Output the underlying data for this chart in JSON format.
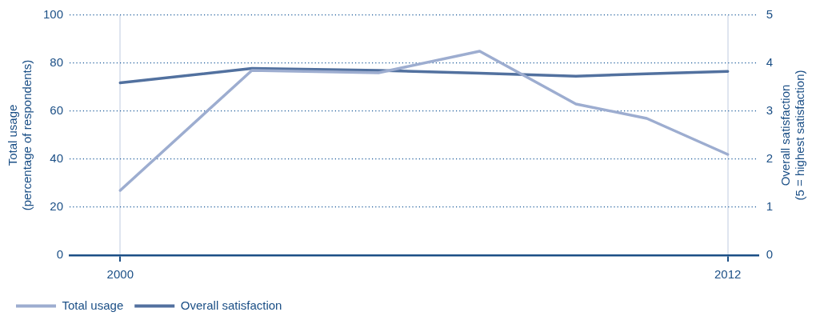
{
  "chart_data": {
    "type": "line",
    "ylabel": "Total usage\n(percentage of respondents)",
    "y2label": "Overall satisfaction\n(5 = highest satisfaction)",
    "x": [
      2000,
      2002.6,
      2005.1,
      2007.1,
      2009.0,
      2010.4,
      2012
    ],
    "xlim": [
      1999,
      2012.6
    ],
    "xticks": [
      2000,
      2012
    ],
    "ylim": [
      0,
      100
    ],
    "yticks": [
      0,
      20,
      40,
      60,
      80,
      100
    ],
    "y2lim": [
      0,
      5
    ],
    "y2ticks": [
      0,
      1,
      2,
      3,
      4,
      5
    ],
    "series": [
      {
        "name": "Total usage",
        "color": "#9dadd0",
        "values": [
          27,
          77,
          76,
          85,
          63,
          57,
          42
        ]
      },
      {
        "name": "Overall satisfaction",
        "color": "#52719f",
        "axis": "y2",
        "values": [
          3.59,
          3.89,
          3.85,
          3.79,
          3.73,
          3.78,
          3.83
        ]
      }
    ],
    "grid": true,
    "legend": "bottom left",
    "marker": "none",
    "line_style": "solid"
  }
}
